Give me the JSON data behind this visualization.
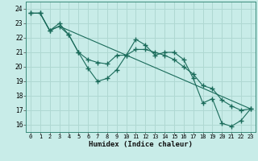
{
  "xlabel": "Humidex (Indice chaleur)",
  "background_color": "#c8ece8",
  "grid_color": "#afd8d2",
  "line_color": "#1a6b5a",
  "ylim": [
    15.5,
    24.5
  ],
  "xlim": [
    -0.5,
    23.5
  ],
  "yticks": [
    16,
    17,
    18,
    19,
    20,
    21,
    22,
    23,
    24
  ],
  "xticks": [
    0,
    1,
    2,
    3,
    4,
    5,
    6,
    7,
    8,
    9,
    10,
    11,
    12,
    13,
    14,
    15,
    16,
    17,
    18,
    19,
    20,
    21,
    22,
    23
  ],
  "line1_x": [
    0,
    1,
    2,
    3,
    4,
    5,
    6,
    7,
    8,
    9,
    10,
    11,
    12,
    13,
    14,
    15,
    16,
    17,
    18,
    19,
    20,
    21,
    22,
    23
  ],
  "line1_y": [
    23.7,
    23.7,
    22.5,
    23.0,
    22.2,
    21.0,
    19.9,
    19.0,
    19.2,
    19.8,
    20.8,
    21.9,
    21.5,
    20.8,
    21.0,
    21.0,
    20.5,
    19.2,
    17.5,
    17.8,
    16.1,
    15.9,
    16.3,
    17.1
  ],
  "line2_x": [
    0,
    1,
    2,
    3,
    4,
    5,
    6,
    7,
    8,
    9,
    10,
    11,
    12,
    13,
    14,
    15,
    16,
    17,
    18,
    19,
    20,
    21,
    22,
    23
  ],
  "line2_y": [
    23.7,
    23.7,
    22.5,
    22.8,
    22.2,
    21.0,
    20.5,
    20.3,
    20.2,
    20.8,
    20.8,
    21.2,
    21.2,
    21.0,
    20.8,
    20.5,
    20.0,
    19.5,
    18.7,
    18.5,
    17.7,
    17.3,
    17.0,
    17.1
  ],
  "line3_x": [
    0,
    1,
    2,
    3,
    23
  ],
  "line3_y": [
    23.7,
    23.7,
    22.5,
    22.8,
    17.1
  ]
}
